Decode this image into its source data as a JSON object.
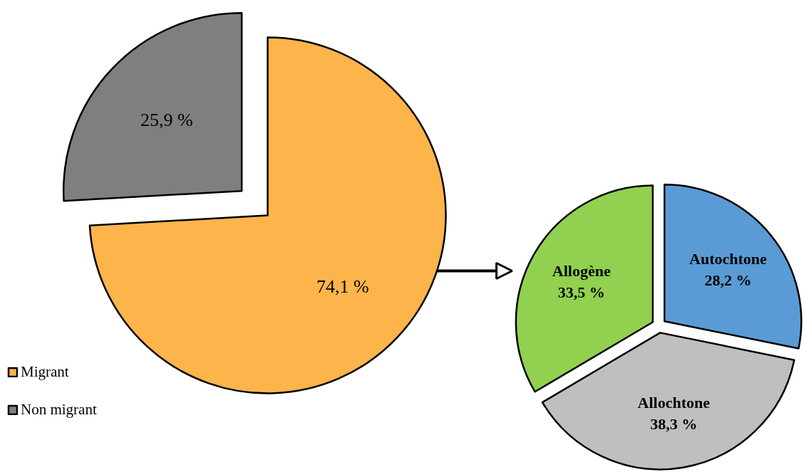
{
  "chart_data": [
    {
      "type": "pie",
      "categories": [
        "Migrant",
        "Non migrant"
      ],
      "values": [
        74.1,
        25.9
      ],
      "colors": [
        "#fdb44b",
        "#7f7f7f"
      ],
      "value_labels": [
        "74,1 %",
        "25,9 %"
      ],
      "legend": "bottom left"
    },
    {
      "type": "pie",
      "categories": [
        "Autochtone",
        "Allochtone",
        "Allogène"
      ],
      "values": [
        28.2,
        38.3,
        33.5
      ],
      "colors": [
        "#5b9bd5",
        "#bfbfbf",
        "#92d050"
      ],
      "value_labels": [
        "28,2 %",
        "38,3 %",
        "33,5 %"
      ]
    }
  ]
}
